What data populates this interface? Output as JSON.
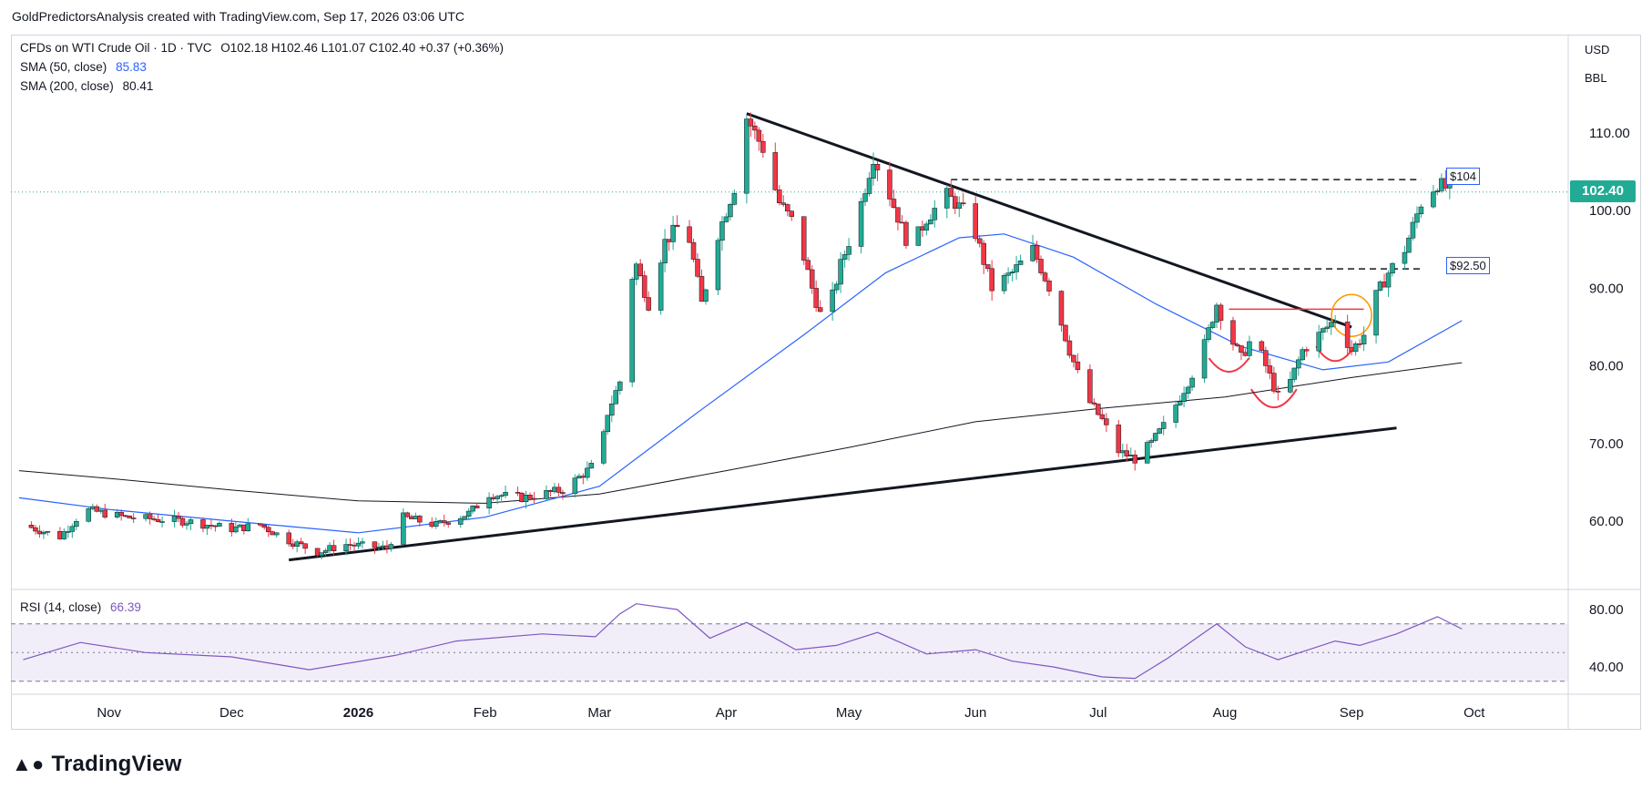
{
  "header": {
    "attribution": "GoldPredictorsAnalysis created with TradingView.com, Sep 17, 2026 03:06 UTC"
  },
  "legend": {
    "symbol": "CFDs on WTI Crude Oil · 1D · TVC",
    "ohlc": "O102.18  H102.46  L101.07  C102.40  +0.37 (+0.36%)",
    "sma50_label": "SMA (50, close)",
    "sma50_value": "85.83",
    "sma200_label": "SMA (200, close)",
    "sma200_value": "80.41",
    "rsi_label": "RSI (14, close)",
    "rsi_value": "66.39"
  },
  "price_axis": {
    "currency": "USD",
    "unit": "BBL",
    "current_price": "102.40"
  },
  "levels": {
    "upper_label": "$104",
    "lower_label": "$92.50"
  },
  "footer": {
    "logo_text": "TradingView"
  },
  "colors": {
    "up": "#22ab94",
    "down": "#f23645",
    "sma50": "#2962ff",
    "sma200": "#131722",
    "rsi": "#7e57c2",
    "annotation_red": "#f23645",
    "annotation_orange": "#ff9800"
  },
  "chart_data": [
    {
      "type": "candlestick",
      "title": "CFDs on WTI Crude Oil · 1D · TVC",
      "y_ticks": [
        "60.00",
        "70.00",
        "80.00",
        "90.00",
        "100.00",
        "110.00"
      ],
      "ylim": [
        52,
        120
      ],
      "x_ticks": [
        "Nov",
        "Dec",
        "2026",
        "Feb",
        "Mar",
        "Apr",
        "May",
        "Jun",
        "Jul",
        "Aug",
        "Sep",
        "Oct"
      ],
      "x_tick_dates": [
        "2025-11-01",
        "2025-12-01",
        "2026-01-01",
        "2026-02-01",
        "2026-03-01",
        "2026-04-01",
        "2026-05-01",
        "2026-06-01",
        "2026-07-01",
        "2026-08-01",
        "2026-09-01",
        "2026-10-01"
      ],
      "grid": false,
      "price_path": [
        [
          "2025-10-11",
          59.5
        ],
        [
          "2025-10-20",
          58.0
        ],
        [
          "2025-10-26",
          61.5
        ],
        [
          "2025-11-05",
          60.5
        ],
        [
          "2025-11-20",
          60.0
        ],
        [
          "2025-12-01",
          59.0
        ],
        [
          "2025-12-08",
          59.5
        ],
        [
          "2025-12-15",
          57.5
        ],
        [
          "2025-12-22",
          56.0
        ],
        [
          "2025-12-29",
          57.0
        ],
        [
          "2026-01-08",
          56.5
        ],
        [
          "2026-01-12",
          60.5
        ],
        [
          "2026-01-20",
          59.5
        ],
        [
          "2026-01-28",
          61.0
        ],
        [
          "2026-02-02",
          63.5
        ],
        [
          "2026-02-10",
          63.0
        ],
        [
          "2026-02-20",
          64.0
        ],
        [
          "2026-02-26",
          66.5
        ],
        [
          "2026-03-01",
          68.0
        ],
        [
          "2026-03-03",
          74.0
        ],
        [
          "2026-03-06",
          78.0
        ],
        [
          "2026-03-08",
          90.0
        ],
        [
          "2026-03-10",
          93.0
        ],
        [
          "2026-03-13",
          88.0
        ],
        [
          "2026-03-17",
          96.0
        ],
        [
          "2026-03-22",
          99.0
        ],
        [
          "2026-03-26",
          88.0
        ],
        [
          "2026-03-30",
          97.0
        ],
        [
          "2026-04-03",
          103.0
        ],
        [
          "2026-04-06",
          112.0
        ],
        [
          "2026-04-10",
          108.0
        ],
        [
          "2026-04-14",
          101.0
        ],
        [
          "2026-04-18",
          98.0
        ],
        [
          "2026-04-22",
          90.0
        ],
        [
          "2026-04-25",
          85.0
        ],
        [
          "2026-04-29",
          93.0
        ],
        [
          "2026-05-03",
          99.0
        ],
        [
          "2026-05-07",
          107.0
        ],
        [
          "2026-05-11",
          102.0
        ],
        [
          "2026-05-16",
          95.0
        ],
        [
          "2026-05-20",
          99.0
        ],
        [
          "2026-05-25",
          102.0
        ],
        [
          "2026-05-29",
          100.0
        ],
        [
          "2026-06-01",
          97.0
        ],
        [
          "2026-06-05",
          90.0
        ],
        [
          "2026-06-10",
          92.0
        ],
        [
          "2026-06-15",
          95.0
        ],
        [
          "2026-06-20",
          89.0
        ],
        [
          "2026-06-24",
          82.0
        ],
        [
          "2026-06-28",
          76.0
        ],
        [
          "2026-07-02",
          73.0
        ],
        [
          "2026-07-06",
          69.0
        ],
        [
          "2026-07-10",
          68.0
        ],
        [
          "2026-07-14",
          70.0
        ],
        [
          "2026-07-18",
          73.0
        ],
        [
          "2026-07-22",
          77.0
        ],
        [
          "2026-07-26",
          81.0
        ],
        [
          "2026-07-30",
          88.0
        ],
        [
          "2026-08-02",
          84.0
        ],
        [
          "2026-08-05",
          81.0
        ],
        [
          "2026-08-08",
          84.0
        ],
        [
          "2026-08-11",
          80.0
        ],
        [
          "2026-08-14",
          76.0
        ],
        [
          "2026-08-17",
          78.0
        ],
        [
          "2026-08-20",
          82.0
        ],
        [
          "2026-08-24",
          84.0
        ],
        [
          "2026-08-28",
          86.0
        ],
        [
          "2026-09-01",
          82.0
        ],
        [
          "2026-09-04",
          84.0
        ],
        [
          "2026-09-07",
          89.0
        ],
        [
          "2026-09-10",
          92.0
        ],
        [
          "2026-09-14",
          95.0
        ],
        [
          "2026-09-18",
          101.0
        ],
        [
          "2026-09-22",
          103.5
        ],
        [
          "2026-09-26",
          102.4
        ]
      ],
      "sma50": [
        [
          "2025-10-10",
          63.0
        ],
        [
          "2025-11-01",
          61.5
        ],
        [
          "2025-12-01",
          60.0
        ],
        [
          "2026-01-01",
          58.5
        ],
        [
          "2026-02-01",
          60.5
        ],
        [
          "2026-03-01",
          64.5
        ],
        [
          "2026-03-25",
          74.0
        ],
        [
          "2026-04-20",
          84.0
        ],
        [
          "2026-05-10",
          92.0
        ],
        [
          "2026-05-28",
          96.5
        ],
        [
          "2026-06-08",
          97.0
        ],
        [
          "2026-06-25",
          94.0
        ],
        [
          "2026-07-15",
          88.0
        ],
        [
          "2026-08-05",
          82.5
        ],
        [
          "2026-08-25",
          79.5
        ],
        [
          "2026-09-10",
          80.5
        ],
        [
          "2026-09-28",
          85.83
        ]
      ],
      "sma200": [
        [
          "2025-10-10",
          66.5
        ],
        [
          "2025-11-01",
          65.5
        ],
        [
          "2025-12-01",
          64.0
        ],
        [
          "2026-01-01",
          62.6
        ],
        [
          "2026-02-01",
          62.3
        ],
        [
          "2026-03-01",
          63.5
        ],
        [
          "2026-04-01",
          66.5
        ],
        [
          "2026-05-01",
          69.5
        ],
        [
          "2026-06-01",
          72.8
        ],
        [
          "2026-07-01",
          74.5
        ],
        [
          "2026-08-01",
          76.0
        ],
        [
          "2026-09-01",
          78.5
        ],
        [
          "2026-09-28",
          80.41
        ]
      ],
      "annotations": {
        "resistance_104": 104,
        "resistance_92_5": 92.5,
        "neckline": 87.3
      }
    },
    {
      "type": "line",
      "title": "RSI (14, close)",
      "y_ticks": [
        "40.00",
        "80.00"
      ],
      "ylim": [
        25,
        90
      ],
      "bands": [
        30,
        50,
        70
      ],
      "values": [
        [
          "2025-10-11",
          45
        ],
        [
          "2025-10-25",
          57
        ],
        [
          "2025-11-10",
          50
        ],
        [
          "2025-12-01",
          47
        ],
        [
          "2025-12-20",
          38
        ],
        [
          "2026-01-10",
          48
        ],
        [
          "2026-01-25",
          58
        ],
        [
          "2026-02-15",
          63
        ],
        [
          "2026-02-28",
          61
        ],
        [
          "2026-03-06",
          77
        ],
        [
          "2026-03-10",
          84
        ],
        [
          "2026-03-20",
          80
        ],
        [
          "2026-03-28",
          60
        ],
        [
          "2026-04-06",
          71
        ],
        [
          "2026-04-18",
          52
        ],
        [
          "2026-04-28",
          55
        ],
        [
          "2026-05-08",
          64
        ],
        [
          "2026-05-20",
          49
        ],
        [
          "2026-06-01",
          52
        ],
        [
          "2026-06-10",
          44
        ],
        [
          "2026-06-20",
          40
        ],
        [
          "2026-07-02",
          33
        ],
        [
          "2026-07-10",
          32
        ],
        [
          "2026-07-18",
          46
        ],
        [
          "2026-07-30",
          70
        ],
        [
          "2026-08-06",
          54
        ],
        [
          "2026-08-14",
          45
        ],
        [
          "2026-08-28",
          58
        ],
        [
          "2026-09-03",
          55
        ],
        [
          "2026-09-12",
          63
        ],
        [
          "2026-09-22",
          75
        ],
        [
          "2026-09-28",
          66.39
        ]
      ]
    }
  ]
}
